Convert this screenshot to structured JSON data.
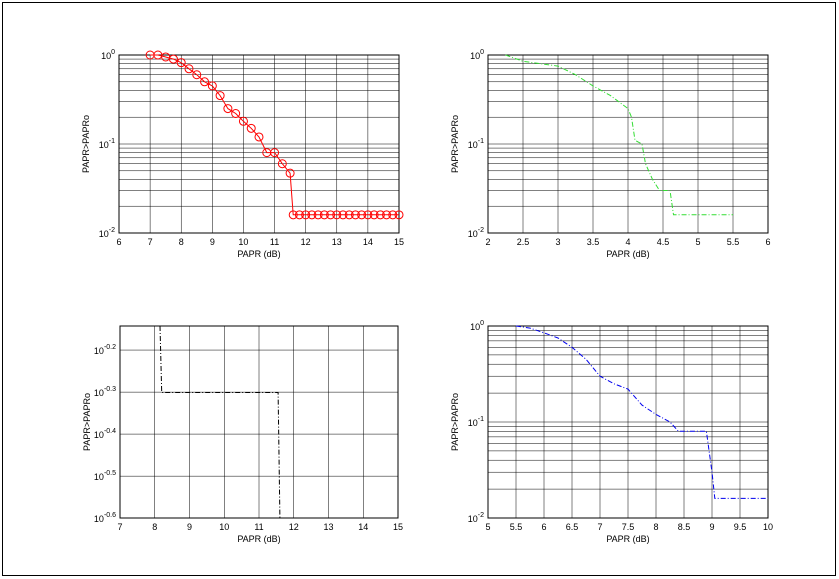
{
  "chart_data": [
    {
      "type": "line",
      "xlabel": "PAPR (dB)",
      "ylabel": "PAPR>PAPRo",
      "log_y": true,
      "grid": true,
      "minor_grid": true,
      "color": "#ff0000",
      "marker": "circle",
      "dash": "solid",
      "x": [
        7,
        7.25,
        7.5,
        7.75,
        8,
        8.25,
        8.5,
        8.75,
        9,
        9.25,
        9.5,
        9.75,
        10,
        10.25,
        10.5,
        10.75,
        11,
        11.25,
        11.5,
        11.6,
        11.8,
        12,
        12.2,
        12.4,
        12.6,
        12.8,
        13,
        13.2,
        13.4,
        13.6,
        13.8,
        14,
        14.2,
        14.4,
        14.6,
        14.8,
        15
      ],
      "values": [
        1,
        1,
        0.95,
        0.9,
        0.82,
        0.7,
        0.6,
        0.5,
        0.45,
        0.35,
        0.25,
        0.22,
        0.18,
        0.15,
        0.12,
        0.08,
        0.08,
        0.06,
        0.047,
        0.016,
        0.016,
        0.016,
        0.016,
        0.016,
        0.016,
        0.016,
        0.016,
        0.016,
        0.016,
        0.016,
        0.016,
        0.016,
        0.016,
        0.016,
        0.016,
        0.016,
        0.016
      ],
      "xlim": [
        6,
        15
      ],
      "xticks": [
        6,
        7,
        8,
        9,
        10,
        11,
        12,
        13,
        14,
        15
      ],
      "ylim": [
        0.01,
        1
      ],
      "yticks": [
        {
          "value": 1,
          "label": "10^0"
        },
        {
          "value": 0.1,
          "label": "10^-1"
        },
        {
          "value": 0.01,
          "label": "10^-2"
        }
      ]
    },
    {
      "type": "line",
      "xlabel": "PAPR (dB)",
      "ylabel": "PAPR>PAPRo",
      "log_y": true,
      "grid": true,
      "minor_grid": true,
      "color": "#33dd33",
      "dash": "dashdot",
      "x": [
        2.25,
        2.5,
        3,
        3.25,
        3.5,
        3.75,
        4,
        4.05,
        4.1,
        4.2,
        4.25,
        4.35,
        4.45,
        4.6,
        4.65,
        5.5
      ],
      "values": [
        1,
        0.85,
        0.75,
        0.6,
        0.45,
        0.35,
        0.25,
        0.2,
        0.11,
        0.1,
        0.06,
        0.04,
        0.03,
        0.03,
        0.016,
        0.016
      ],
      "xlim": [
        2,
        6
      ],
      "xticks": [
        2,
        2.5,
        3,
        3.5,
        4,
        4.5,
        5,
        5.5,
        6
      ],
      "ylim": [
        0.01,
        1
      ],
      "yticks": [
        {
          "value": 1,
          "label": "10^0"
        },
        {
          "value": 0.1,
          "label": "10^-1"
        },
        {
          "value": 0.01,
          "label": "10^-2"
        }
      ]
    },
    {
      "type": "line",
      "xlabel": "PAPR (dB)",
      "ylabel": "PAPR>PAPRo",
      "log_y": true,
      "grid": true,
      "minor_grid": false,
      "color": "#000000",
      "dash": "dashdot",
      "x": [
        8.15,
        8.2,
        11.55,
        11.6
      ],
      "values": [
        0.72,
        0.5,
        0.5,
        0.2512
      ],
      "xlim": [
        7,
        15
      ],
      "xticks": [
        7,
        8,
        9,
        10,
        11,
        12,
        13,
        14,
        15
      ],
      "ylim": [
        0.2512,
        0.72
      ],
      "yticks": [
        {
          "value": 0.631,
          "label": "10^-0.2"
        },
        {
          "value": 0.501,
          "label": "10^-0.3"
        },
        {
          "value": 0.398,
          "label": "10^-0.4"
        },
        {
          "value": 0.316,
          "label": "10^-0.5"
        },
        {
          "value": 0.2512,
          "label": "10^-0.6"
        }
      ]
    },
    {
      "type": "line",
      "xlabel": "PAPR (dB)",
      "ylabel": "PAPR>PAPRo",
      "log_y": true,
      "grid": true,
      "minor_grid": true,
      "color": "#0000ee",
      "dash": "dashdot",
      "x": [
        5.5,
        5.75,
        6,
        6.25,
        6.5,
        6.75,
        7,
        7.25,
        7.5,
        7.75,
        8,
        8.25,
        8.4,
        8.9,
        9,
        9.05,
        10
      ],
      "values": [
        1,
        0.95,
        0.85,
        0.75,
        0.6,
        0.45,
        0.3,
        0.25,
        0.22,
        0.15,
        0.12,
        0.1,
        0.08,
        0.08,
        0.03,
        0.016,
        0.016
      ],
      "xlim": [
        5,
        10
      ],
      "xticks": [
        5,
        5.5,
        6,
        6.5,
        7,
        7.5,
        8,
        8.5,
        9,
        9.5,
        10
      ],
      "ylim": [
        0.01,
        1
      ],
      "yticks": [
        {
          "value": 1,
          "label": "10^0"
        },
        {
          "value": 0.1,
          "label": "10^-1"
        },
        {
          "value": 0.01,
          "label": "10^-2"
        }
      ]
    }
  ]
}
